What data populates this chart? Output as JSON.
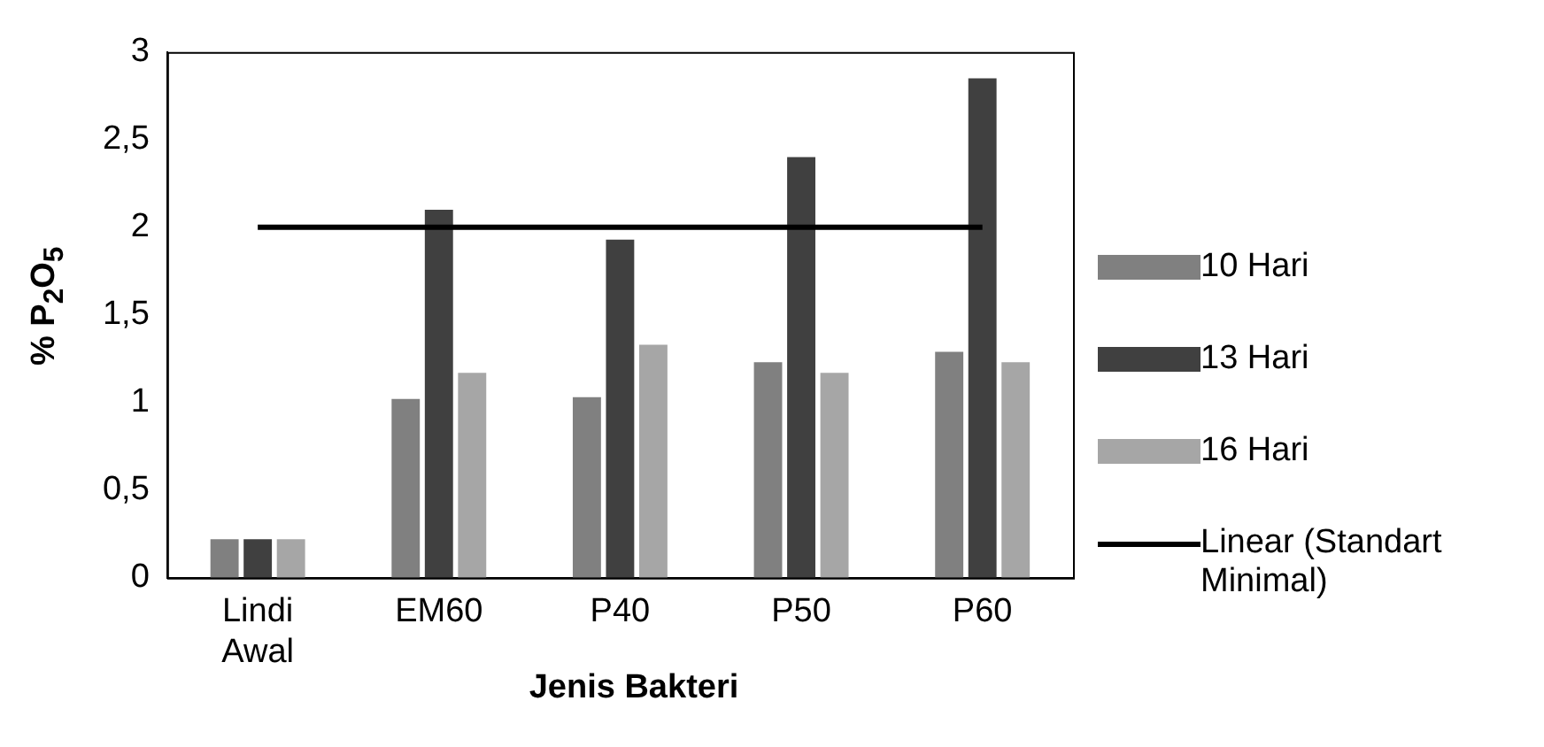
{
  "chart_data": {
    "type": "bar",
    "xlabel": "Jenis Bakteri",
    "ylabel": "% P$_{2}$O$_{5}$",
    "categories": [
      "Lindi Awal",
      "EM60",
      "P40",
      "P50",
      "P60"
    ],
    "series": [
      {
        "name": "10 Hari",
        "color": "#808080",
        "values": [
          0.22,
          1.02,
          1.03,
          1.23,
          1.29
        ]
      },
      {
        "name": "13 Hari",
        "color": "#404040",
        "values": [
          0.22,
          2.1,
          1.93,
          2.4,
          2.85
        ]
      },
      {
        "name": "16 Hari",
        "color": "#a6a6a6",
        "values": [
          0.22,
          1.17,
          1.33,
          1.17,
          1.23
        ]
      },
      {
        "name": "Linear (Standart Minimal)",
        "type": "line",
        "color": "#000000",
        "values": [
          2,
          2,
          2,
          2,
          2
        ]
      }
    ],
    "ylim": [
      0,
      3
    ],
    "yticks": [
      0,
      {
        "value": 0.5,
        "label": "0,5"
      },
      1,
      {
        "value": 1.5,
        "label": "1,5"
      },
      2,
      {
        "value": 2.5,
        "label": "2,5"
      },
      3
    ],
    "grid": false,
    "legend": "right"
  }
}
